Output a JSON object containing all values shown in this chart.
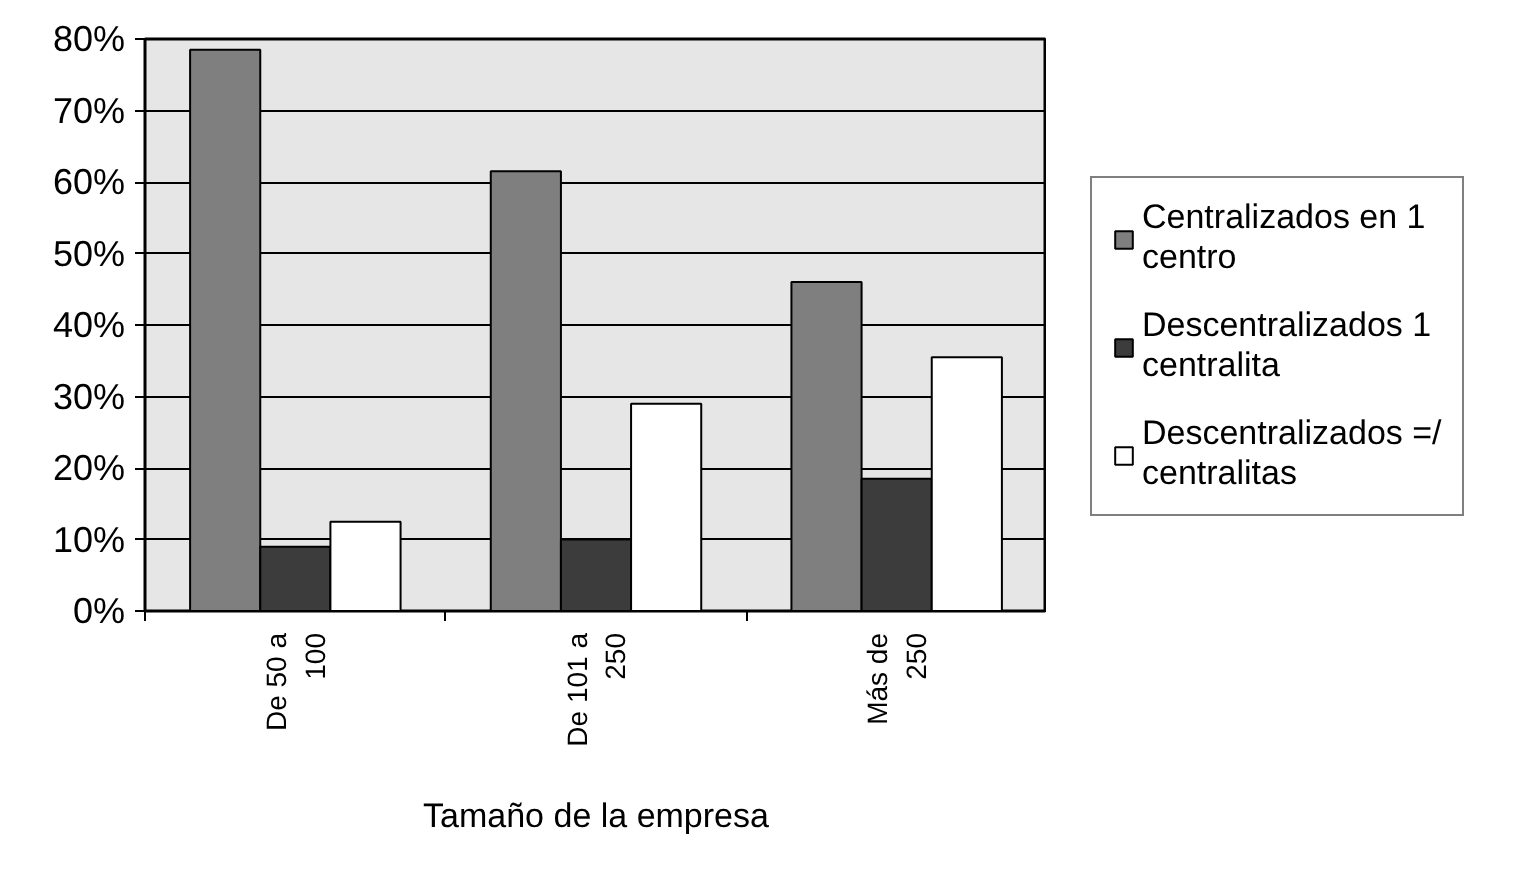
{
  "chart_data": {
    "type": "bar",
    "categories": [
      "De 50 a 100",
      "De 101 a 250",
      "Más de 250"
    ],
    "xlabel": "Tamaño de la empresa",
    "series": [
      {
        "name": "Centralizados en 1 centro",
        "color": "#7f7f7f",
        "values": [
          78.5,
          61.5,
          46
        ]
      },
      {
        "name": "Descentralizados 1 centralita",
        "color": "#3c3c3c",
        "values": [
          9,
          10,
          18.5
        ]
      },
      {
        "name": "Descentralizados =/ centralitas",
        "color": "#ffffff",
        "values": [
          12.5,
          29,
          35.5
        ]
      }
    ],
    "ylim": [
      0,
      80
    ],
    "yticks": [
      {
        "value": 0,
        "label": "0%"
      },
      {
        "value": 10,
        "label": "10%"
      },
      {
        "value": 20,
        "label": "20%"
      },
      {
        "value": 30,
        "label": "30%"
      },
      {
        "value": 40,
        "label": "40%"
      },
      {
        "value": 50,
        "label": "50%"
      },
      {
        "value": 60,
        "label": "60%"
      },
      {
        "value": 70,
        "label": "70%"
      },
      {
        "value": 80,
        "label": "80%"
      }
    ],
    "grid": "y",
    "legend": "right"
  }
}
